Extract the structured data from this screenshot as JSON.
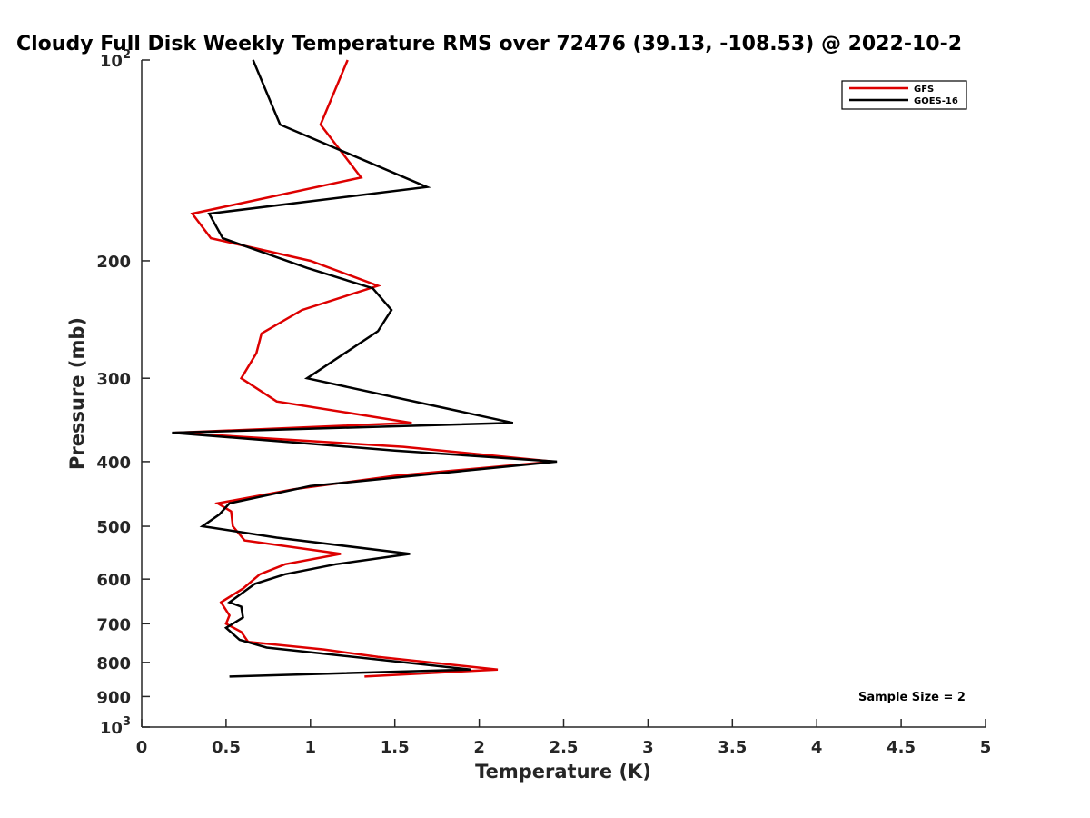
{
  "chart_data": {
    "type": "line",
    "title": "Cloudy Full Disk Weekly Temperature RMS over 72476 (39.13, -108.53) @ 2022-10-2",
    "xlabel": "Temperature (K)",
    "ylabel": "Pressure (mb)",
    "xlim": [
      0,
      5
    ],
    "ylim": [
      100,
      1000
    ],
    "y_scale": "log",
    "y_reversed": true,
    "x_ticks": [
      "0",
      "0.5",
      "1",
      "1.5",
      "2",
      "2.5",
      "3",
      "3.5",
      "4",
      "4.5",
      "5"
    ],
    "y_ticks": [
      {
        "value": 100,
        "base": "10",
        "exp": "2"
      },
      {
        "value": 200,
        "label": "200"
      },
      {
        "value": 300,
        "label": "300"
      },
      {
        "value": 400,
        "label": "400"
      },
      {
        "value": 500,
        "label": "500"
      },
      {
        "value": 600,
        "label": "600"
      },
      {
        "value": 700,
        "label": "700"
      },
      {
        "value": 800,
        "label": "800"
      },
      {
        "value": 900,
        "label": "900"
      },
      {
        "value": 1000,
        "base": "10",
        "exp": "3"
      }
    ],
    "grid": false,
    "legend_position": "top-right",
    "annotation": "Sample Size = 2",
    "series": [
      {
        "name": "GFS",
        "color": "#dd0000",
        "points": [
          [
            1.22,
            100
          ],
          [
            1.06,
            125
          ],
          [
            1.3,
            150
          ],
          [
            0.3,
            170
          ],
          [
            0.41,
            185
          ],
          [
            1.0,
            200
          ],
          [
            1.4,
            218
          ],
          [
            0.95,
            237
          ],
          [
            0.71,
            257
          ],
          [
            0.68,
            275
          ],
          [
            0.59,
            300
          ],
          [
            0.8,
            325
          ],
          [
            1.6,
            350
          ],
          [
            0.2,
            362
          ],
          [
            1.55,
            380
          ],
          [
            2.44,
            400
          ],
          [
            1.5,
            420
          ],
          [
            0.9,
            440
          ],
          [
            0.45,
            462
          ],
          [
            0.53,
            475
          ],
          [
            0.54,
            500
          ],
          [
            0.61,
            525
          ],
          [
            1.18,
            550
          ],
          [
            0.85,
            570
          ],
          [
            0.7,
            590
          ],
          [
            0.6,
            620
          ],
          [
            0.47,
            650
          ],
          [
            0.52,
            680
          ],
          [
            0.5,
            700
          ],
          [
            0.59,
            720
          ],
          [
            0.63,
            745
          ],
          [
            1.08,
            765
          ],
          [
            1.4,
            785
          ],
          [
            2.11,
            820
          ],
          [
            1.32,
            840
          ]
        ]
      },
      {
        "name": "GOES-16",
        "color": "#000000",
        "points": [
          [
            0.66,
            100
          ],
          [
            0.82,
            125
          ],
          [
            1.69,
            155
          ],
          [
            0.4,
            170
          ],
          [
            0.48,
            185
          ],
          [
            0.98,
            205
          ],
          [
            1.37,
            220
          ],
          [
            1.48,
            237
          ],
          [
            1.4,
            255
          ],
          [
            0.98,
            300
          ],
          [
            2.2,
            350
          ],
          [
            0.18,
            362
          ],
          [
            1.5,
            385
          ],
          [
            2.46,
            400
          ],
          [
            1.0,
            435
          ],
          [
            0.52,
            462
          ],
          [
            0.46,
            480
          ],
          [
            0.36,
            500
          ],
          [
            0.8,
            520
          ],
          [
            1.59,
            550
          ],
          [
            1.15,
            570
          ],
          [
            0.85,
            590
          ],
          [
            0.67,
            610
          ],
          [
            0.52,
            650
          ],
          [
            0.59,
            660
          ],
          [
            0.6,
            685
          ],
          [
            0.5,
            710
          ],
          [
            0.58,
            740
          ],
          [
            0.74,
            760
          ],
          [
            1.95,
            820
          ],
          [
            0.52,
            840
          ]
        ]
      }
    ]
  }
}
